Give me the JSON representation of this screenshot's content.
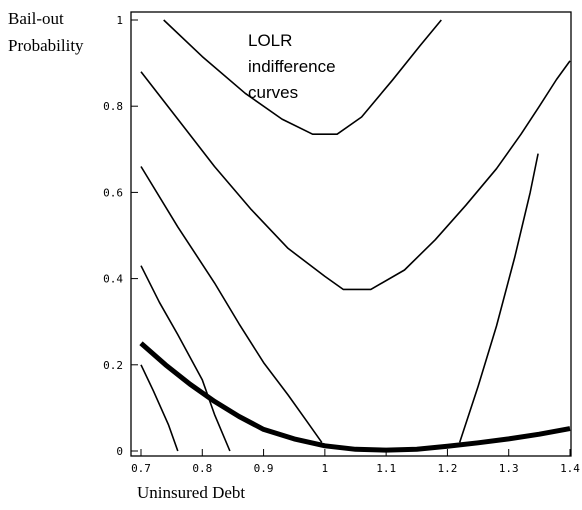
{
  "chart_data": {
    "type": "line",
    "title": "",
    "xlabel": "Uninsured Debt",
    "ylabel_lines": [
      "Bail-out",
      "Probability"
    ],
    "annotation_lines": [
      "LOLR",
      "indifference",
      "curves"
    ],
    "xlim": [
      0.7,
      1.4
    ],
    "ylim": [
      0,
      1
    ],
    "x_ticks": [
      0.7,
      0.8,
      0.9,
      1.0,
      1.1,
      1.2,
      1.3,
      1.4
    ],
    "x_tick_labels": [
      "0.7",
      "0.8",
      "0.9",
      "1",
      "1.1",
      "1.2",
      "1.3",
      "1.4"
    ],
    "y_ticks": [
      0,
      0.2,
      0.4,
      0.6,
      0.8,
      1
    ],
    "y_tick_labels": [
      "0",
      "0.2",
      "0.4",
      "0.6",
      "0.8",
      "1"
    ],
    "grid": false,
    "legend": "none",
    "colors": {
      "line": "#000000",
      "background": "#ffffff"
    },
    "series": [
      {
        "style": "thin",
        "points": [
          [
            0.737,
            1.0
          ],
          [
            0.8,
            0.915
          ],
          [
            0.87,
            0.83
          ],
          [
            0.93,
            0.77
          ],
          [
            0.98,
            0.735
          ],
          [
            1.0,
            0.735
          ],
          [
            1.02,
            0.735
          ],
          [
            1.06,
            0.775
          ],
          [
            1.11,
            0.86
          ],
          [
            1.155,
            0.94
          ],
          [
            1.19,
            1.0
          ]
        ]
      },
      {
        "style": "thin",
        "points": [
          [
            0.7,
            0.88
          ],
          [
            0.76,
            0.77
          ],
          [
            0.82,
            0.66
          ],
          [
            0.88,
            0.56
          ],
          [
            0.94,
            0.47
          ],
          [
            1.0,
            0.405
          ],
          [
            1.03,
            0.375
          ],
          [
            1.075,
            0.375
          ],
          [
            1.13,
            0.42
          ],
          [
            1.18,
            0.49
          ],
          [
            1.23,
            0.57
          ],
          [
            1.28,
            0.655
          ],
          [
            1.32,
            0.735
          ],
          [
            1.35,
            0.8
          ],
          [
            1.378,
            0.862
          ],
          [
            1.4,
            0.905
          ]
        ]
      },
      {
        "style": "thin",
        "points": [
          [
            0.7,
            0.66
          ],
          [
            0.76,
            0.52
          ],
          [
            0.82,
            0.39
          ],
          [
            0.86,
            0.295
          ],
          [
            0.9,
            0.205
          ],
          [
            0.94,
            0.13
          ],
          [
            0.97,
            0.07
          ],
          [
            0.995,
            0.02
          ]
        ]
      },
      {
        "style": "thin",
        "points": [
          [
            0.7,
            0.43
          ],
          [
            0.73,
            0.345
          ],
          [
            0.76,
            0.27
          ],
          [
            0.8,
            0.165
          ],
          [
            0.82,
            0.085
          ],
          [
            0.845,
            0.0
          ]
        ]
      },
      {
        "style": "thin",
        "points": [
          [
            0.7,
            0.2
          ],
          [
            0.72,
            0.14
          ],
          [
            0.745,
            0.06
          ],
          [
            0.76,
            0.0
          ]
        ]
      },
      {
        "style": "thin",
        "points": [
          [
            1.22,
            0.02
          ],
          [
            1.25,
            0.15
          ],
          [
            1.28,
            0.29
          ],
          [
            1.31,
            0.45
          ],
          [
            1.335,
            0.6
          ],
          [
            1.348,
            0.69
          ]
        ]
      },
      {
        "style": "thick",
        "points": [
          [
            0.7,
            0.25
          ],
          [
            0.74,
            0.2
          ],
          [
            0.78,
            0.155
          ],
          [
            0.82,
            0.115
          ],
          [
            0.86,
            0.08
          ],
          [
            0.9,
            0.05
          ],
          [
            0.95,
            0.028
          ],
          [
            1.0,
            0.012
          ],
          [
            1.05,
            0.004
          ],
          [
            1.1,
            0.002
          ],
          [
            1.15,
            0.004
          ],
          [
            1.2,
            0.011
          ],
          [
            1.25,
            0.019
          ],
          [
            1.3,
            0.028
          ],
          [
            1.35,
            0.039
          ],
          [
            1.4,
            0.052
          ]
        ]
      }
    ]
  }
}
